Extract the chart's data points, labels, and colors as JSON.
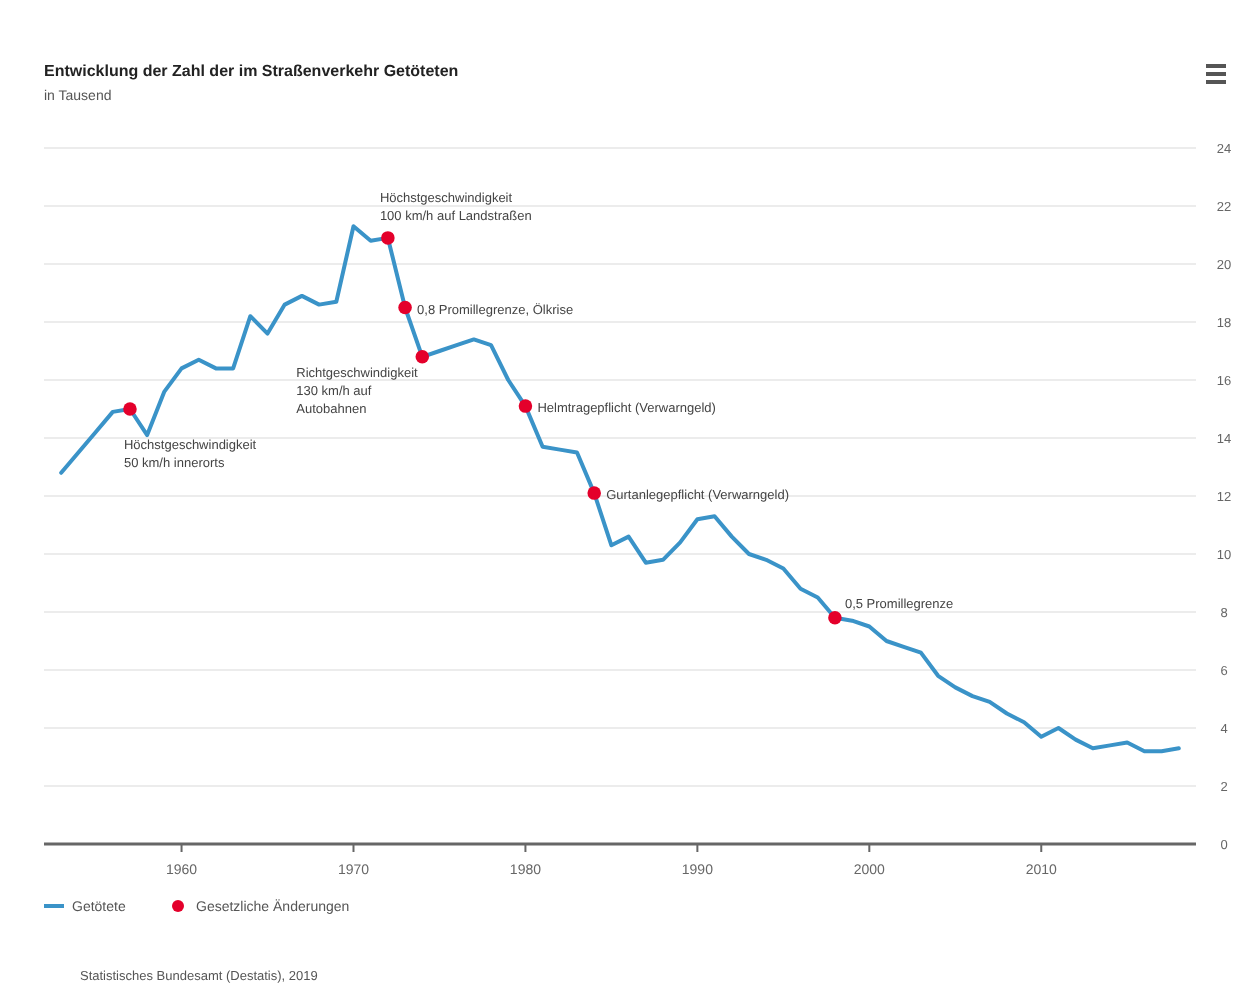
{
  "chart_data": {
    "type": "line",
    "title": "Entwicklung der Zahl der im Straßenverkehr Getöteten",
    "subtitle": "in Tausend",
    "x": [
      1953,
      1954,
      1955,
      1956,
      1957,
      1958,
      1959,
      1960,
      1961,
      1962,
      1963,
      1964,
      1965,
      1966,
      1967,
      1968,
      1969,
      1970,
      1971,
      1972,
      1973,
      1974,
      1975,
      1976,
      1977,
      1978,
      1979,
      1980,
      1981,
      1982,
      1983,
      1984,
      1985,
      1986,
      1987,
      1988,
      1989,
      1990,
      1991,
      1992,
      1993,
      1994,
      1995,
      1996,
      1997,
      1998,
      1999,
      2000,
      2001,
      2002,
      2003,
      2004,
      2005,
      2006,
      2007,
      2008,
      2009,
      2010,
      2011,
      2012,
      2013,
      2014,
      2015,
      2016,
      2017,
      2018
    ],
    "series": [
      {
        "name": "Getötete",
        "color": "#3a93c8",
        "marker": "none",
        "values": [
          12.8,
          13.5,
          14.2,
          14.9,
          15.0,
          14.1,
          15.6,
          16.4,
          16.7,
          16.4,
          16.4,
          18.2,
          17.6,
          18.6,
          18.9,
          18.6,
          18.7,
          21.3,
          20.8,
          20.9,
          18.5,
          16.8,
          17.0,
          17.2,
          17.4,
          17.2,
          16.0,
          15.1,
          13.7,
          13.6,
          13.5,
          12.1,
          10.3,
          10.6,
          9.7,
          9.8,
          10.4,
          11.2,
          11.3,
          10.6,
          10.0,
          9.8,
          9.5,
          8.8,
          8.5,
          7.8,
          7.7,
          7.5,
          7.0,
          6.8,
          6.6,
          5.8,
          5.4,
          5.1,
          4.9,
          4.5,
          4.2,
          3.7,
          4.0,
          3.6,
          3.3,
          3.4,
          3.5,
          3.2,
          3.2,
          3.3
        ]
      },
      {
        "name": "Gesetzliche Änderungen",
        "type": "scatter",
        "color": "#e4002b",
        "marker": "circle",
        "x": [
          1957,
          1972,
          1973,
          1974,
          1980,
          1984,
          1998
        ],
        "values": [
          15.0,
          20.9,
          18.5,
          16.8,
          15.1,
          12.1,
          7.8
        ]
      }
    ],
    "xlim": [
      1952,
      2019
    ],
    "xticks": [
      1960,
      1970,
      1980,
      1990,
      2000,
      2010
    ],
    "ylim": [
      0,
      24
    ],
    "yticks": [
      0,
      2,
      4,
      6,
      8,
      10,
      12,
      14,
      16,
      18,
      20,
      22,
      24
    ],
    "grid": "y",
    "legend": "bottom",
    "annotations": [
      {
        "text": "Höchstgeschwindigkeit 50 km/h innerorts",
        "x": 1957,
        "y": 15.0
      },
      {
        "text": "Höchstgeschwindigkeit 100 km/h auf Landstraßen",
        "x": 1972,
        "y": 20.9
      },
      {
        "text": "0,8 Promillegrenze, Ölkrise",
        "x": 1973,
        "y": 18.5
      },
      {
        "text": "Richtgeschwindigkeit 130 km/h auf Autobahnen",
        "x": 1974,
        "y": 16.8
      },
      {
        "text": "Helmtragepflicht (Verwarngeld)",
        "x": 1980,
        "y": 15.1
      },
      {
        "text": "Gurtanlegepflicht (Verwarngeld)",
        "x": 1984,
        "y": 12.1
      },
      {
        "text": "0,5 Promillegrenze",
        "x": 1998,
        "y": 7.8
      },
      "Statistisches Bundesamt (Destatis), 2019"
    ]
  }
}
